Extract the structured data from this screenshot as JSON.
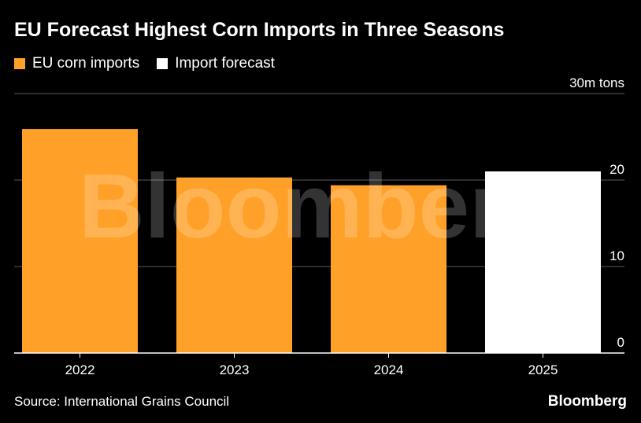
{
  "title": "EU Forecast Highest Corn Imports in Three Seasons",
  "legend": [
    {
      "label": "EU corn imports",
      "color": "#ffa028"
    },
    {
      "label": "Import forecast",
      "color": "#ffffff"
    }
  ],
  "source": "Source: International Grains Council",
  "brand": "Bloomberg",
  "watermark": "Bloomberg",
  "chart_data": {
    "type": "bar",
    "categories": [
      "2022",
      "2023",
      "2024",
      "2025"
    ],
    "values": [
      25.9,
      20.3,
      19.4,
      21.0
    ],
    "series": [
      {
        "name": "EU corn imports",
        "color": "#ffa028",
        "categories": [
          "2022",
          "2023",
          "2024"
        ]
      },
      {
        "name": "Import forecast",
        "color": "#ffffff",
        "categories": [
          "2025"
        ]
      }
    ],
    "ylim": [
      0,
      30
    ],
    "yticks": [
      0,
      10,
      20,
      30
    ],
    "ytick_labels": [
      "0",
      "10",
      "20",
      "30m tons"
    ],
    "y_axis_position": "right",
    "grid": true,
    "xlabel": "",
    "ylabel": ""
  }
}
